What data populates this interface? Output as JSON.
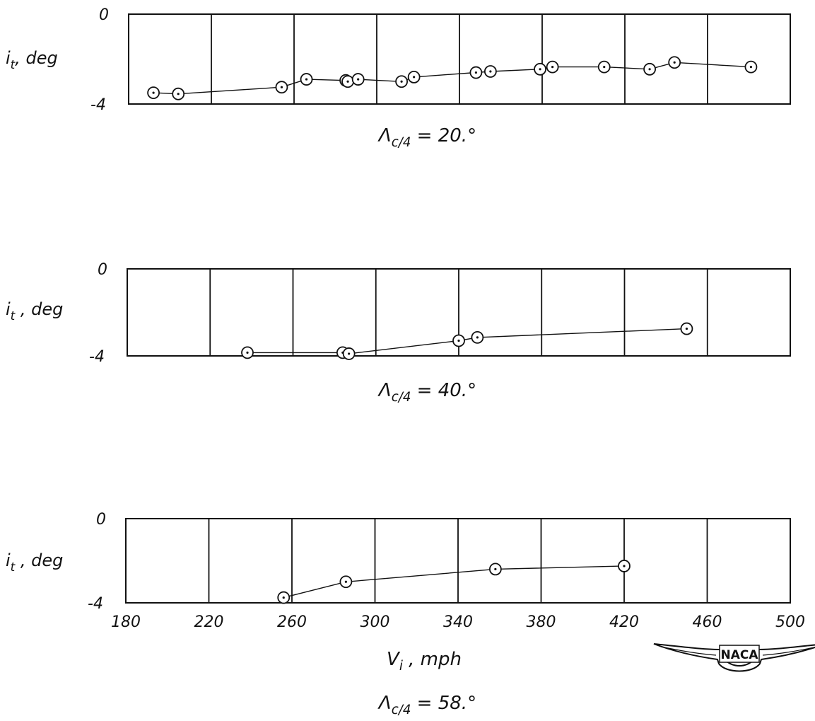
{
  "chart_data": [
    {
      "type": "scatter",
      "title": "",
      "xlabel": "",
      "ylabel": "i_t , deg",
      "ylabel_main": "i",
      "ylabel_sub": "t",
      "ylabel_rest": ", deg",
      "caption": "Λc/4 = 20°",
      "caption_sym": "Λ",
      "caption_sub": "c/4",
      "caption_rest": " = 20.°",
      "xlim": [
        180,
        500
      ],
      "ylim": [
        -4,
        0
      ],
      "yticks": [
        "0",
        "-4"
      ],
      "grid": true,
      "series": [
        {
          "x": [
            192,
            204,
            254,
            266,
            285,
            286,
            291,
            312,
            318,
            348,
            355,
            379,
            385,
            410,
            432,
            444,
            481
          ],
          "y": [
            -3.5,
            -3.55,
            -3.25,
            -2.9,
            -2.95,
            -3.0,
            -2.9,
            -3.0,
            -2.8,
            -2.6,
            -2.55,
            -2.45,
            -2.35,
            -2.35,
            -2.45,
            -2.15,
            -2.35
          ]
        }
      ]
    },
    {
      "type": "scatter",
      "title": "",
      "xlabel": "",
      "ylabel": "i_t , deg",
      "ylabel_main": "i",
      "ylabel_sub": "t",
      "ylabel_rest": " , deg",
      "caption": "Λc/4 = 40°",
      "caption_sym": "Λ",
      "caption_sub": "c/4",
      "caption_rest": " = 40.°",
      "xlim": [
        180,
        500
      ],
      "ylim": [
        -4,
        0
      ],
      "yticks": [
        "0",
        "-4"
      ],
      "grid": true,
      "series": [
        {
          "x": [
            238,
            284,
            287,
            340,
            349,
            450
          ],
          "y": [
            -3.85,
            -3.85,
            -3.9,
            -3.3,
            -3.15,
            -2.75
          ]
        }
      ]
    },
    {
      "type": "scatter",
      "title": "",
      "xlabel": "V_i , mph",
      "xlabel_main": "V",
      "xlabel_sub": "i",
      "xlabel_rest": " , mph",
      "ylabel": "i_t , deg",
      "ylabel_main": "i",
      "ylabel_sub": "t",
      "ylabel_rest": " , deg",
      "caption": "Λc/4 = 58°",
      "caption_sym": "Λ",
      "caption_sub": "c/4",
      "caption_rest": " = 58.°",
      "xlim": [
        180,
        500
      ],
      "ylim": [
        -4,
        0
      ],
      "yticks": [
        "0",
        "-4"
      ],
      "xticks": [
        "180",
        "220",
        "260",
        "300",
        "340",
        "380",
        "420",
        "460",
        "500"
      ],
      "grid": true,
      "series": [
        {
          "x": [
            256,
            286,
            358,
            420
          ],
          "y": [
            -3.75,
            -3.0,
            -2.4,
            -2.25
          ]
        }
      ]
    }
  ],
  "logo": {
    "text": "NACA"
  },
  "colors": {
    "ink": "#111111",
    "background": "#ffffff"
  }
}
